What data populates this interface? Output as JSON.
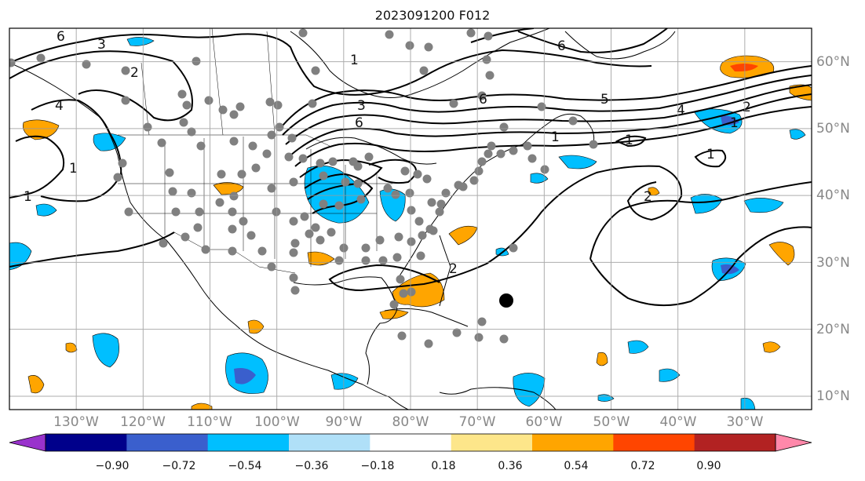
{
  "title": "2023091200 F012",
  "map": {
    "lon_range": [
      -140,
      -20
    ],
    "lat_range": [
      8,
      65
    ],
    "lon_ticks": [
      "130°W",
      "120°W",
      "110°W",
      "100°W",
      "90°W",
      "80°W",
      "70°W",
      "60°W",
      "50°W",
      "40°W",
      "30°W"
    ],
    "lat_ticks": [
      "10°N",
      "20°N",
      "30°N",
      "40°N",
      "50°N",
      "60°N"
    ],
    "contour_labels": [
      "6",
      "3",
      "2",
      "4",
      "1",
      "1",
      "3",
      "6",
      "1",
      "6",
      "5",
      "4",
      "2",
      "6",
      "1",
      "1",
      "1",
      "2",
      "2",
      "1"
    ],
    "grid_color": "#999999",
    "tick_label_color": "#888888"
  },
  "colorbar": {
    "labels": [
      "−0.90",
      "−0.72",
      "−0.54",
      "−0.36",
      "−0.18",
      "0.18",
      "0.36",
      "0.54",
      "0.72",
      "0.90"
    ],
    "colors": [
      "#9932cc",
      "#00008b",
      "#3a5fcd",
      "#00bfff",
      "#b0e0f8",
      "#ffffff",
      "#fde68a",
      "#ffa500",
      "#ff4500",
      "#b22222",
      "#ff88aa"
    ]
  }
}
